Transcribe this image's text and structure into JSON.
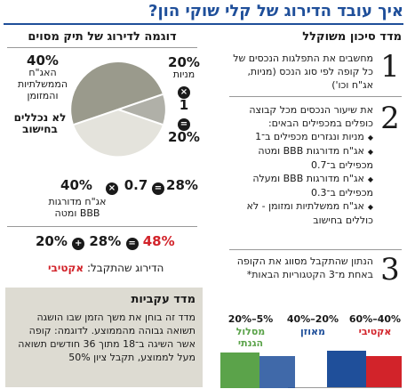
{
  "title": "איך עובד הדירוג של קלי שוקי הון?",
  "right": {
    "heading": "מדד סיכון משוקלל",
    "steps": [
      {
        "num": "1",
        "text": "מחשבים את התפלגות הנכסים של כל קופה לפי סוג הנכס (מניות, אג\"ח וכו')"
      },
      {
        "num": "2",
        "intro": "את שיעור הנכסים מכל קבוצה כופלים במכפילים הבאים:",
        "bullets": [
          "מניות ונגזרים מכפילים ב־1",
          "אג\"ח מדורגות BBB ומטה מכפילים ב־0.7",
          "אג\"ח מדורגות BBB ומעלה מכפילים ב־0.3",
          "אג\"ח ממשלתיות ומזומן - לא כוללים בחישוב"
        ]
      },
      {
        "num": "3",
        "text": "הנתון שהתקבל מסווג את הקופה באחת מ־3 הקטגוריות הבאות*"
      }
    ],
    "categories": [
      {
        "label": "אקטיבי",
        "range": "40%–60%",
        "color": "#d2232a"
      },
      {
        "label": "מאוזן",
        "range": "20%–40%",
        "color": "#1f4f9a"
      },
      {
        "label": "מסלול הגנתי",
        "range": "5%–20%",
        "color": "#5ba34a"
      }
    ]
  },
  "example": {
    "heading": "דוגמה לדירוג של תיק מסוים",
    "slices": [
      {
        "pct": "20%",
        "label": "מניות",
        "value": 20,
        "color": "#b0b0a8"
      },
      {
        "pct": "40%",
        "label": "אג\"ח מדורגות BBB ומטה",
        "value": 40,
        "color": "#e4e3dc"
      },
      {
        "pct": "40%",
        "label": "האג\"ח הממשלתיות והמזומן",
        "value": 40,
        "color": "#9a9a8c"
      }
    ],
    "excluded_label": "לא נכללים בחישוב",
    "calc1": {
      "a": "1",
      "result": "20%"
    },
    "calc2": {
      "a": "0.7",
      "result": "28%"
    },
    "final": {
      "a": "20%",
      "b": "28%",
      "result": "48%"
    },
    "rating_label": "הדירוג שהתקבל:",
    "rating_value": "אקטיבי",
    "ops": {
      "times": "×",
      "plus": "+",
      "equals": "="
    }
  },
  "momentum": {
    "heading": "מדד עקביות",
    "body": "מדד זה בוחן את משך הזמן שבו הושגה תשואה גבוהה מהממוצע. לדוגמה: קופה אשר השיגה ב־18 מתוך 36 חודשים תשואה מעל לממוצע, תקבל ציון 50%"
  }
}
